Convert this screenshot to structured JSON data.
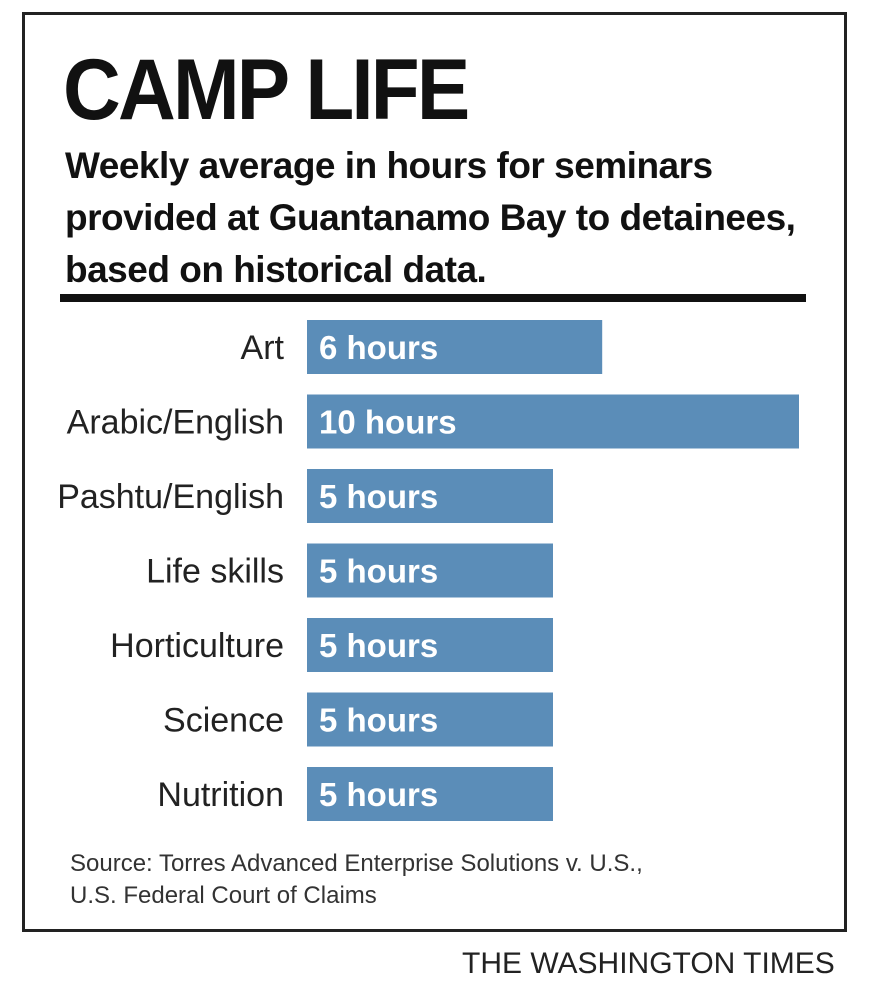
{
  "header": {
    "title": "CAMP LIFE",
    "subtitle": "Weekly average in hours for seminars provided at Guantanamo Bay to detainees, based on historical data."
  },
  "chart_data": {
    "type": "bar",
    "orientation": "horizontal",
    "title": "CAMP LIFE",
    "subtitle": "Weekly average in hours for seminars provided at Guantanamo Bay to detainees, based on historical data.",
    "xlabel": "",
    "ylabel": "",
    "categories": [
      "Art",
      "Arabic/English",
      "Pashtu/English",
      "Life skills",
      "Horticulture",
      "Science",
      "Nutrition"
    ],
    "values": [
      6,
      10,
      5,
      5,
      5,
      5,
      5
    ],
    "data_labels": [
      "6 hours",
      "10 hours",
      "5 hours",
      "5 hours",
      "5 hours",
      "5 hours",
      "5 hours"
    ],
    "unit": "hours",
    "xlim": [
      0,
      10
    ],
    "grid": false,
    "bar_color": "#5b8db8"
  },
  "footer": {
    "source_line1": "Source: Torres Advanced Enterprise Solutions v. U.S.,",
    "source_line2": "U.S. Federal Court of Claims",
    "credit": "THE WASHINGTON TIMES"
  }
}
